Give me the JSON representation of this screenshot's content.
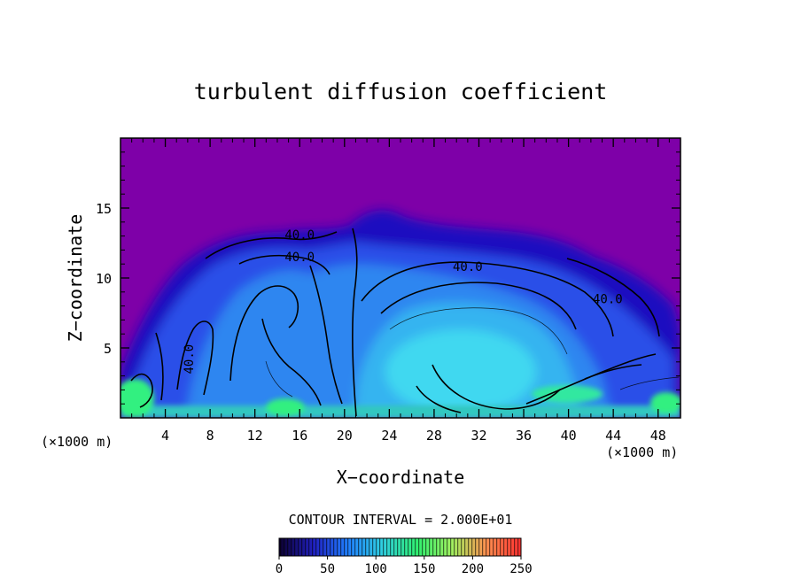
{
  "chart_data": {
    "type": "heatmap",
    "title": "turbulent diffusion coefficient",
    "xlabel": "X−coordinate",
    "ylabel": "Z−coordinate",
    "x_unit_left": "(×1000 m)",
    "x_unit_right": "(×1000 m)",
    "xlim": [
      0,
      50
    ],
    "ylim": [
      0,
      20
    ],
    "x_ticks": [
      4,
      8,
      12,
      16,
      20,
      24,
      28,
      32,
      36,
      40,
      44,
      48
    ],
    "y_ticks": [
      5,
      10,
      15
    ],
    "contour_interval_text": "CONTOUR INTERVAL = 2.000E+01",
    "contour_labels": [
      {
        "text": "40.0",
        "x": 16.0,
        "z": 12.8
      },
      {
        "text": "40.0",
        "x": 16.0,
        "z": 11.2
      },
      {
        "text": "40.0",
        "x": 31.0,
        "z": 10.5
      },
      {
        "text": "40.0",
        "x": 43.5,
        "z": 8.2
      },
      {
        "text": "40.0",
        "x": 6.5,
        "z": 4.2
      }
    ],
    "colorbar": {
      "min": 0,
      "max": 250,
      "ticks": [
        0,
        50,
        100,
        150,
        200,
        250
      ],
      "colors": [
        "#0c0030",
        "#2020c0",
        "#2080ff",
        "#30d0e0",
        "#30f070",
        "#a0f060",
        "#ff9050",
        "#ff3030"
      ]
    },
    "background_color": "#7e00a8",
    "field_colors": [
      "#1a10c0",
      "#2a50e8",
      "#2f86f0",
      "#35b4f0",
      "#40d8f0",
      "#30f080"
    ]
  }
}
